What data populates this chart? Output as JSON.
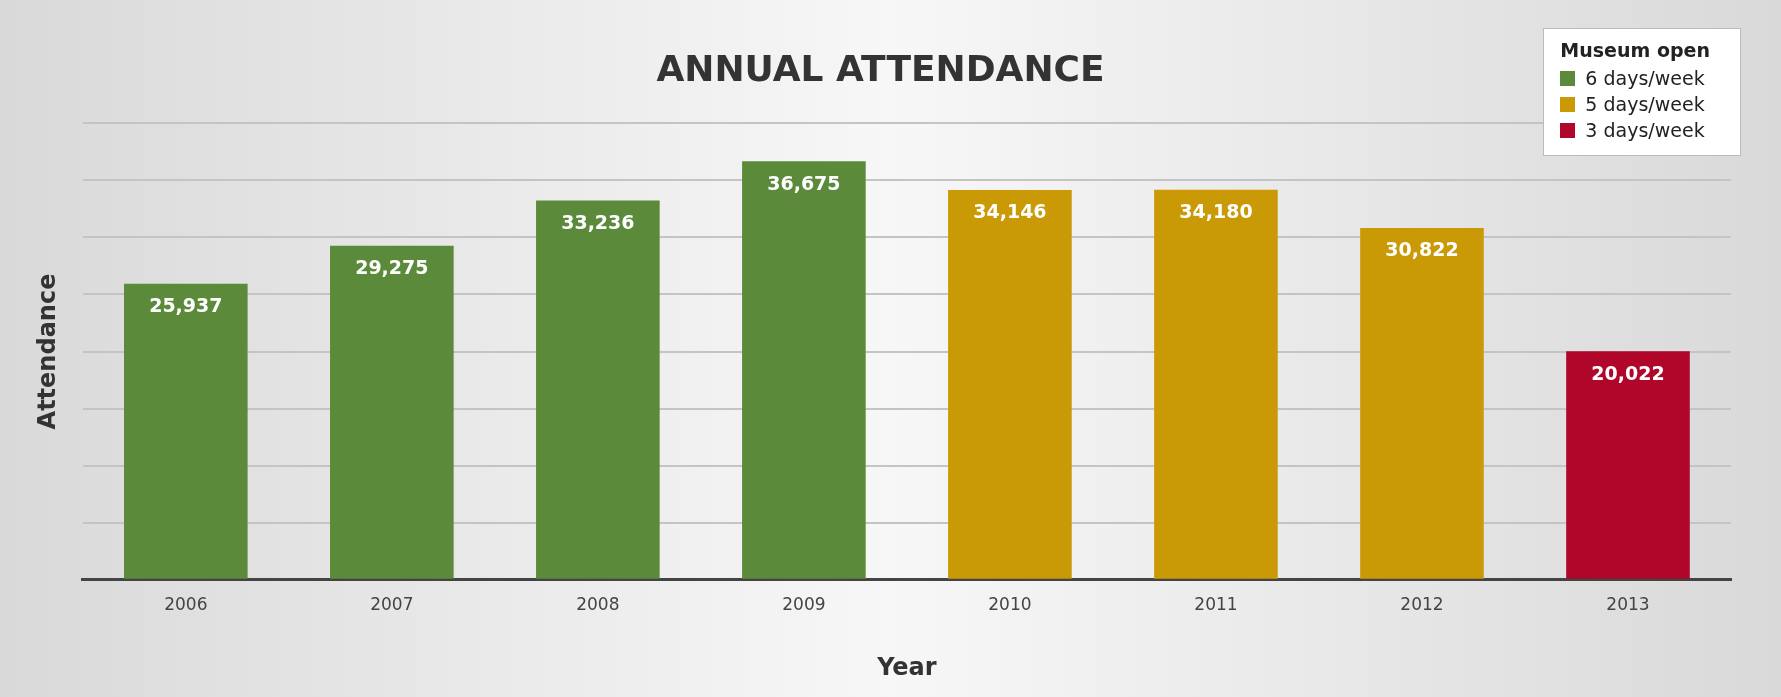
{
  "chart_data": {
    "type": "bar",
    "title": "ANNUAL ATTENDANCE",
    "xlabel": "Year",
    "ylabel": "Attendance",
    "legend_title": "Museum open",
    "legend": "top right",
    "grid": "y",
    "tick_labels": "x",
    "categories": [
      "2006",
      "2007",
      "2008",
      "2009",
      "2010",
      "2011",
      "2012",
      "2013"
    ],
    "series": [
      {
        "name": "6 days/week",
        "color": "#5b8a3a",
        "values": [
          25937,
          29275,
          33236,
          36675,
          null,
          null,
          null,
          null
        ],
        "value_labels": [
          "25,937",
          "29,275",
          "33,236",
          "36,675",
          null,
          null,
          null,
          null
        ]
      },
      {
        "name": "5 days/week",
        "color": "#c99a06",
        "values": [
          null,
          null,
          null,
          null,
          34146,
          34180,
          30822,
          null
        ],
        "value_labels": [
          null,
          null,
          null,
          null,
          "34,146",
          "34,180",
          "30,822",
          null
        ]
      },
      {
        "name": "3 days/week",
        "color": "#b0062a",
        "values": [
          null,
          null,
          null,
          null,
          null,
          null,
          null,
          20022
        ],
        "value_labels": [
          null,
          null,
          null,
          null,
          null,
          null,
          null,
          "20,022"
        ]
      }
    ]
  }
}
